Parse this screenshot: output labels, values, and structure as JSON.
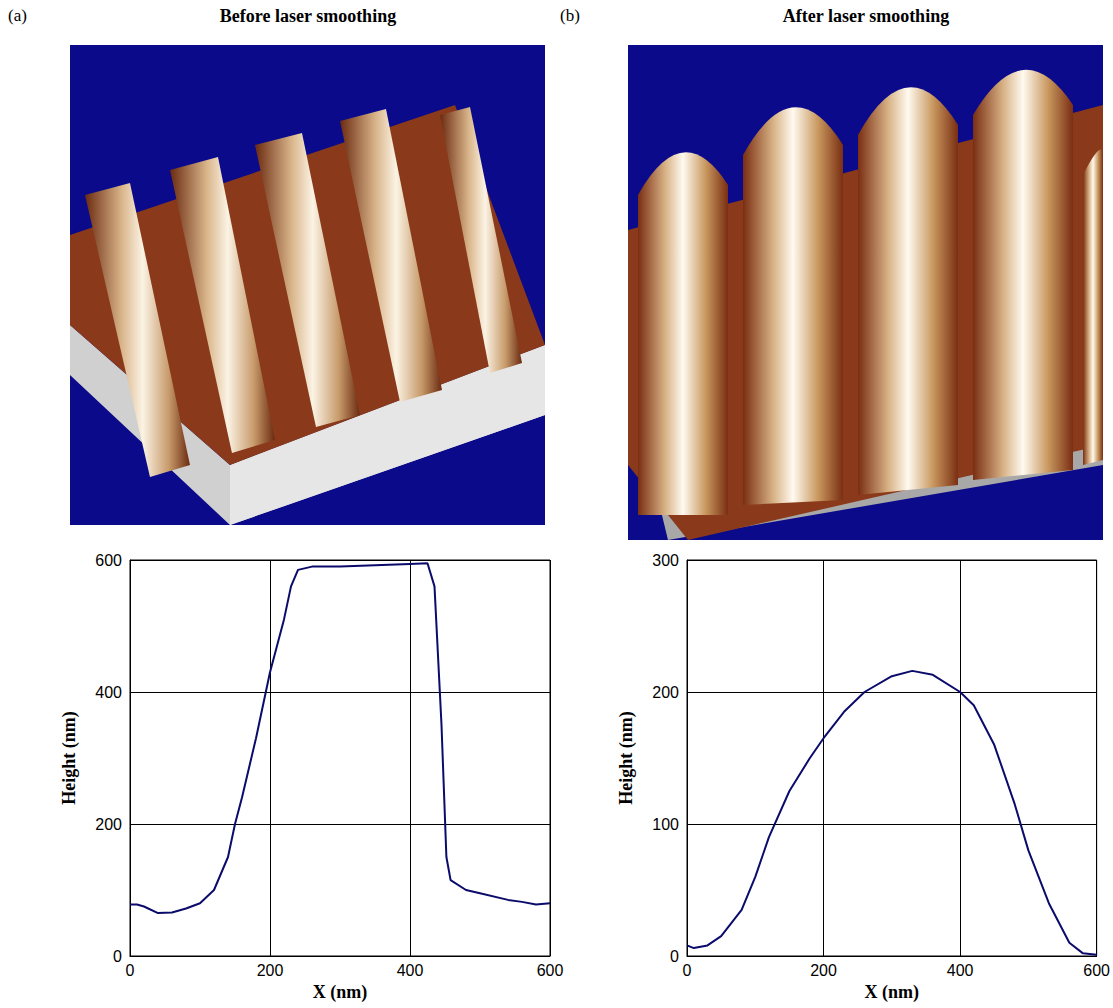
{
  "chart_data": [
    {
      "type": "line",
      "label": "(a)",
      "title": "Before laser smoothing",
      "x_label": "X (nm)",
      "y_label": "Height (nm)",
      "color": "#0b0b6b",
      "grid": true,
      "x": [
        0,
        10,
        20,
        40,
        60,
        80,
        100,
        120,
        140,
        150,
        160,
        180,
        200,
        220,
        230,
        240,
        260,
        300,
        350,
        400,
        425,
        435,
        445,
        452,
        458,
        480,
        500,
        540,
        560,
        580,
        600
      ],
      "values": [
        78,
        78,
        75,
        65,
        66,
        72,
        80,
        100,
        150,
        200,
        240,
        330,
        430,
        510,
        560,
        585,
        590,
        590,
        592,
        594,
        595,
        560,
        350,
        150,
        115,
        100,
        95,
        85,
        82,
        78,
        80
      ],
      "xlim": [
        0,
        600
      ],
      "xticks": [
        0,
        200,
        400,
        600
      ],
      "ylim": [
        0,
        600
      ],
      "yticks": [
        0,
        200,
        400,
        600
      ]
    },
    {
      "type": "line",
      "label": "(b)",
      "title": "After laser smoothing",
      "x_label": "X (nm)",
      "y_label": "Height (nm)",
      "color": "#0b0b6b",
      "grid": true,
      "x": [
        0,
        10,
        30,
        50,
        80,
        100,
        120,
        150,
        180,
        200,
        230,
        260,
        300,
        330,
        360,
        400,
        420,
        450,
        480,
        500,
        530,
        560,
        580,
        600
      ],
      "values": [
        8,
        6,
        8,
        15,
        35,
        60,
        90,
        125,
        150,
        165,
        185,
        200,
        212,
        216,
        213,
        200,
        190,
        160,
        115,
        80,
        40,
        10,
        2,
        1
      ],
      "xlim": [
        0,
        600
      ],
      "xticks": [
        0,
        200,
        400,
        600
      ],
      "ylim": [
        0,
        300
      ],
      "yticks": [
        0,
        100,
        200,
        300
      ]
    }
  ]
}
